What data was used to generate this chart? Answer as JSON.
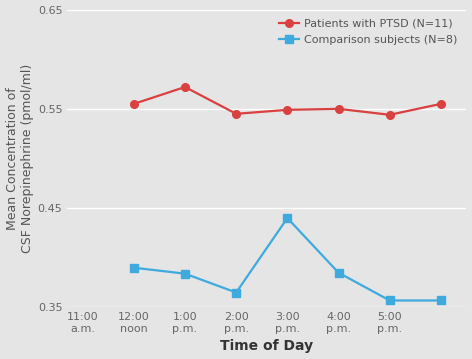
{
  "ptsd_x": [
    1,
    2,
    3,
    4,
    5,
    6,
    7
  ],
  "ptsd_y": [
    0.555,
    0.572,
    0.545,
    0.549,
    0.55,
    0.544,
    0.555
  ],
  "control_x": [
    1,
    2,
    3,
    4,
    5,
    6,
    7
  ],
  "control_y": [
    0.39,
    0.384,
    0.365,
    0.44,
    0.385,
    0.357,
    0.357
  ],
  "xtick_positions": [
    0,
    1,
    2,
    3,
    4,
    5,
    6,
    7
  ],
  "xtick_labels": [
    "11:00\na.m.",
    "12:00\nnoon",
    "1:00\np.m.",
    "2:00\np.m.",
    "3:00\np.m.",
    "4:00\np.m.",
    "5:00\np.m.",
    ""
  ],
  "ptsd_label": "Patients with PTSD (N=11)",
  "control_label": "Comparison subjects (N=8)",
  "ylabel": "Mean Concentration of\nCSF Norepinephrine (pmol/ml)",
  "xlabel": "Time of Day",
  "ylim": [
    0.35,
    0.65
  ],
  "yticks": [
    0.35,
    0.45,
    0.55,
    0.65
  ],
  "xlim": [
    -0.3,
    7.5
  ],
  "ptsd_color": "#d94040",
  "control_color": "#3eaadd",
  "bg_color": "#e5e5e5",
  "legend_fontsize": 8,
  "axis_label_fontsize": 9,
  "tick_fontsize": 8,
  "xlabel_fontsize": 10
}
